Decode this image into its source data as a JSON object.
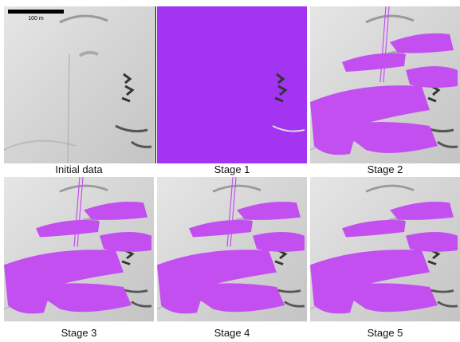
{
  "scale_bar": {
    "label": "100 m"
  },
  "panels": [
    {
      "caption": "Initial data"
    },
    {
      "caption": "Stage 1"
    },
    {
      "caption": "Stage 2"
    },
    {
      "caption": "Stage 3"
    },
    {
      "caption": "Stage 4"
    },
    {
      "caption": "Stage 5"
    }
  ]
}
